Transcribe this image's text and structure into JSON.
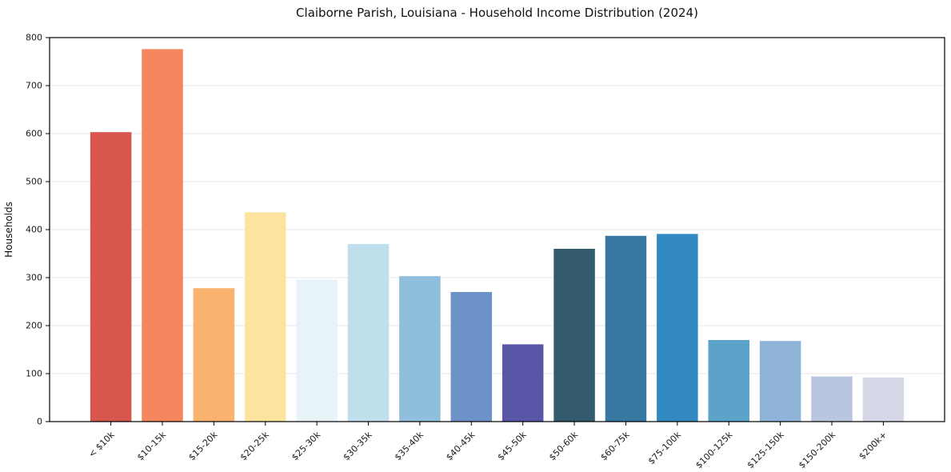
{
  "chart_data": {
    "type": "bar",
    "title": "Claiborne Parish, Louisiana - Household Income Distribution (2024)",
    "xlabel": "",
    "ylabel": "Households",
    "ylim": [
      0,
      800
    ],
    "yticks": [
      0,
      100,
      200,
      300,
      400,
      500,
      600,
      700,
      800
    ],
    "grid": "horizontal-light-gray",
    "legend": "none",
    "categories": [
      "< $10k",
      "$10-15k",
      "$15-20k",
      "$20-25k",
      "$25-30k",
      "$30-35k",
      "$35-40k",
      "$40-45k",
      "$45-50k",
      "$50-60k",
      "$60-75k",
      "$75-100k",
      "$100-125k",
      "$125-150k",
      "$150-200k",
      "$200k+"
    ],
    "values": [
      603,
      776,
      278,
      436,
      296,
      370,
      303,
      270,
      161,
      360,
      387,
      391,
      170,
      168,
      94,
      92
    ],
    "bar_colors": [
      "#d9564e",
      "#f5875f",
      "#fab36e",
      "#fde49e",
      "#e8f3f8",
      "#bfdfec",
      "#90bedd",
      "#6d92c7",
      "#5956a8",
      "#345b6d",
      "#36789f",
      "#338ac2",
      "#5ba3c8",
      "#8fb4d8",
      "#b9c6e0",
      "#d6d8e8"
    ],
    "axis_color": "#000000",
    "grid_color": "#e7e7e7",
    "tick_label_color": "#1a1a1a"
  }
}
